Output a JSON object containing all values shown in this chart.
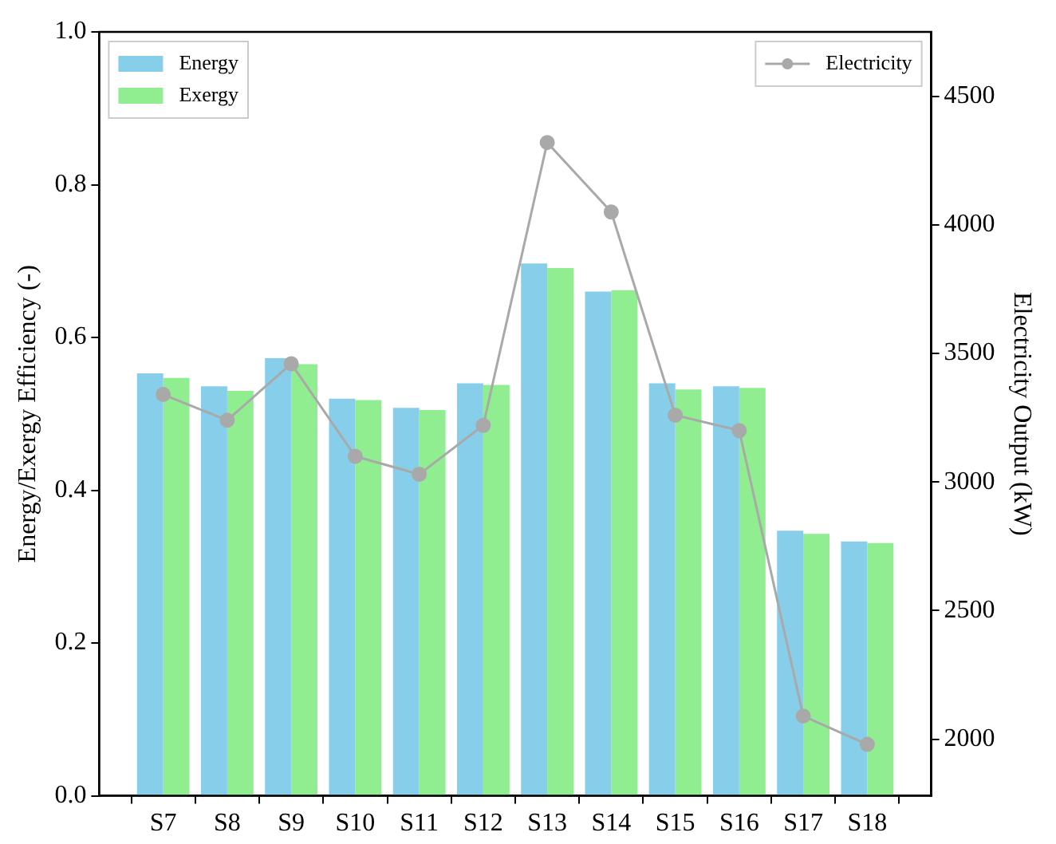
{
  "chart_data": {
    "type": "bar",
    "categories": [
      "S7",
      "S8",
      "S9",
      "S10",
      "S11",
      "S12",
      "S13",
      "S14",
      "S15",
      "S16",
      "S17",
      "S18"
    ],
    "ylabel": "Energy/Exergy Efficiency (-)",
    "y2label": "Electricity Output (kW)",
    "series": [
      {
        "name": "Energy",
        "color": "#87ceeb",
        "values": [
          0.553,
          0.536,
          0.573,
          0.52,
          0.508,
          0.54,
          0.697,
          0.66,
          0.54,
          0.536,
          0.347,
          0.333
        ]
      },
      {
        "name": "Exergy",
        "color": "#90ee90",
        "values": [
          0.547,
          0.53,
          0.565,
          0.518,
          0.505,
          0.538,
          0.691,
          0.662,
          0.532,
          0.534,
          0.343,
          0.331
        ]
      },
      {
        "name": "Electricity",
        "type": "line",
        "axis": "y2",
        "color": "#a9a9a9",
        "values": [
          3340,
          3240,
          3460,
          3100,
          3030,
          3220,
          4320,
          4050,
          3260,
          3200,
          2090,
          1980
        ]
      }
    ],
    "ylim": [
      0,
      1
    ],
    "yticks": [
      {
        "value": 0,
        "label": "0.0"
      },
      {
        "value": 0.2,
        "label": "0.2"
      },
      {
        "value": 0.4,
        "label": "0.4"
      },
      {
        "value": 0.6,
        "label": "0.6"
      },
      {
        "value": 0.8,
        "label": "0.8"
      },
      {
        "value": 1,
        "label": "1.0"
      }
    ],
    "y2lim": [
      1780,
      4750
    ],
    "y2ticks": [
      2000,
      2500,
      3000,
      3500,
      4000,
      4500
    ],
    "legend": "top left",
    "marker": "circle",
    "grid": false
  }
}
